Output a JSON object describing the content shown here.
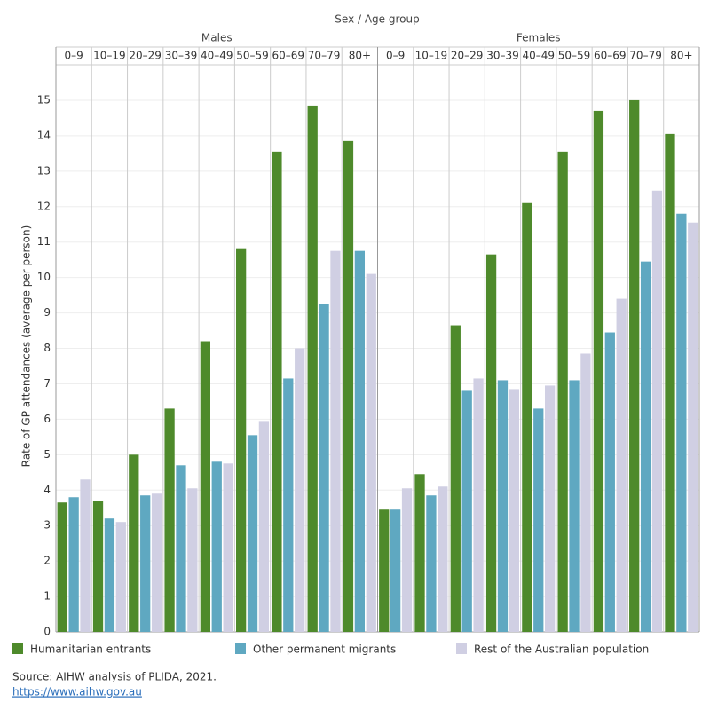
{
  "chart_data": {
    "type": "bar",
    "title": "Sex / Age group",
    "y_label": "Rate of GP attendances (average per person)",
    "facets": [
      "Males",
      "Females"
    ],
    "categories": [
      "0–9",
      "10–19",
      "20–29",
      "30–39",
      "40–49",
      "50–59",
      "60–69",
      "70–79",
      "80+",
      "0–9",
      "10–19",
      "20–29",
      "30–39",
      "40–49",
      "50–59",
      "60–69",
      "70–79",
      "80+"
    ],
    "series": [
      {
        "name": "Humanitarian entrants",
        "color": "#4e8a2b",
        "values": [
          3.65,
          3.7,
          5.0,
          6.3,
          8.2,
          10.8,
          13.55,
          14.85,
          13.85,
          3.45,
          4.45,
          8.65,
          10.65,
          12.1,
          13.55,
          14.7,
          15.0,
          14.05
        ]
      },
      {
        "name": "Other permanent migrants",
        "color": "#5fa8c1",
        "values": [
          3.8,
          3.2,
          3.85,
          4.7,
          4.8,
          5.55,
          7.15,
          9.25,
          10.75,
          3.45,
          3.85,
          6.8,
          7.1,
          6.3,
          7.1,
          8.45,
          10.45,
          11.8
        ]
      },
      {
        "name": "Rest of the Australian population",
        "color": "#d0cfe3",
        "values": [
          4.3,
          3.1,
          3.9,
          4.05,
          4.75,
          5.95,
          8.0,
          10.75,
          10.1,
          4.05,
          4.1,
          7.15,
          6.85,
          6.95,
          7.85,
          9.4,
          12.45,
          11.55
        ]
      }
    ],
    "ylim": [
      0,
      16
    ],
    "yticks": [
      0,
      1,
      2,
      3,
      4,
      5,
      6,
      7,
      8,
      9,
      10,
      11,
      12,
      13,
      14,
      15
    ],
    "grid": true,
    "source": "Source: AIHW analysis of PLIDA, 2021.",
    "link": "https://www.aihw.gov.au"
  }
}
